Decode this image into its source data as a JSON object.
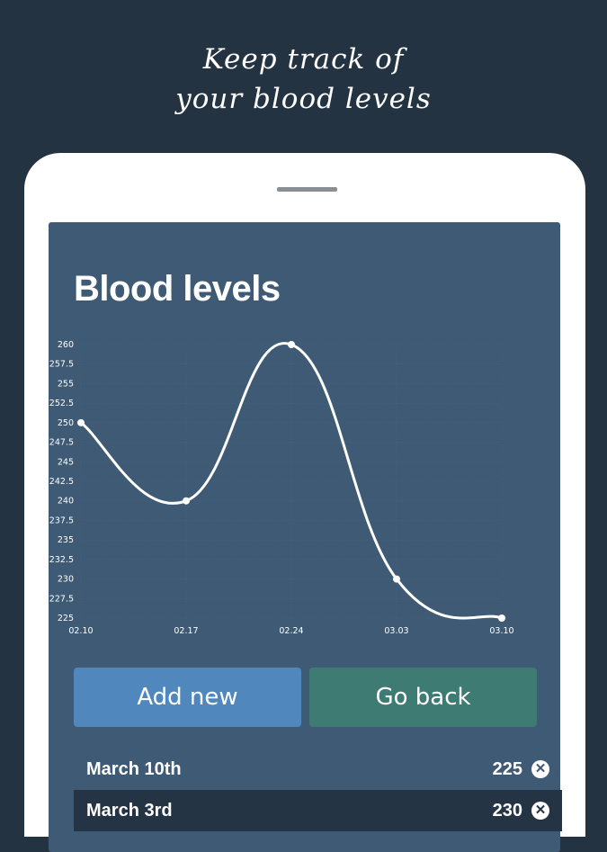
{
  "headline": {
    "line1": "Keep track of",
    "line2": "your blood levels"
  },
  "screen": {
    "title": "Blood levels",
    "buttons": {
      "add": "Add new",
      "back": "Go back"
    },
    "entries": [
      {
        "date": "March 10th",
        "value": "225"
      },
      {
        "date": "March 3rd",
        "value": "230"
      }
    ]
  },
  "colors": {
    "background": "#243342",
    "panel": "#3e5a74",
    "add_button": "#5088bd",
    "back_button": "#3e7c73"
  },
  "chart_data": {
    "type": "line",
    "categories": [
      "02.10",
      "02.17",
      "02.24",
      "03.03",
      "03.10"
    ],
    "values": [
      250,
      240,
      260,
      230,
      225
    ],
    "ylim": [
      225,
      260
    ],
    "yticks": [
      "225",
      "227.5",
      "230",
      "232.5",
      "235",
      "237.5",
      "240",
      "242.5",
      "245",
      "247.5",
      "250",
      "252.5",
      "255",
      "257.5",
      "260"
    ],
    "grid": true,
    "smooth": true
  }
}
